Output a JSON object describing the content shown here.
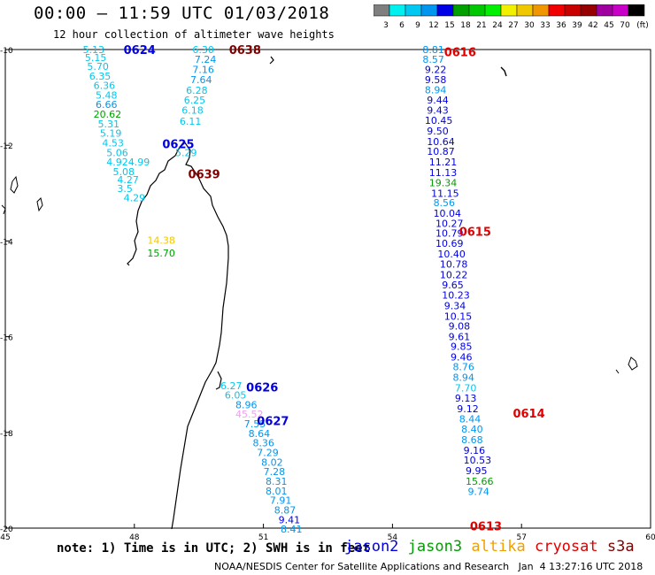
{
  "title": "00:00 – 11:59 UTC 01/03/2018",
  "subtitle": "12 hour collection of altimeter wave heights",
  "colorbar": {
    "ticks": [
      "3",
      "6",
      "9",
      "12",
      "15",
      "18",
      "21",
      "24",
      "27",
      "30",
      "33",
      "36",
      "39",
      "42",
      "45",
      "70",
      "(ft)"
    ],
    "colors": [
      "#7f7f7f",
      "#00f0f0",
      "#00c8f0",
      "#0096f0",
      "#0000e6",
      "#00a000",
      "#00c800",
      "#00f000",
      "#f0f000",
      "#f0c800",
      "#f09600",
      "#f00000",
      "#c80000",
      "#960000",
      "#a000a0",
      "#c800c8",
      "#000000"
    ]
  },
  "axes": {
    "lat_ticks": [
      {
        "lat": -10,
        "label": "-10"
      },
      {
        "lat": -12,
        "label": "-12"
      },
      {
        "lat": -14,
        "label": "-14"
      },
      {
        "lat": -16,
        "label": "-16"
      },
      {
        "lat": -18,
        "label": "-18"
      },
      {
        "lat": -20,
        "label": "-20"
      }
    ],
    "lon_ticks": [
      {
        "lon": 45,
        "label": "45"
      },
      {
        "lon": 48,
        "label": "48"
      },
      {
        "lon": 51,
        "label": "51"
      },
      {
        "lon": 54,
        "label": "54"
      },
      {
        "lon": 57,
        "label": "57"
      },
      {
        "lon": 60,
        "label": "60"
      }
    ]
  },
  "satellite_colors": {
    "jason2": "#0000e0",
    "jason3": "#00a000",
    "altika": "#f0a000",
    "cryosat": "#e00000",
    "s3a": "#800000"
  },
  "track_labels": [
    {
      "text": "0624",
      "lon": 47.75,
      "lat": -10.0,
      "color": "#0000e0"
    },
    {
      "text": "0638",
      "lon": 50.2,
      "lat": -10.0,
      "color": "#800000"
    },
    {
      "text": "0616",
      "lon": 55.2,
      "lat": -10.05,
      "color": "#e00000"
    },
    {
      "text": "0625",
      "lon": 48.65,
      "lat": -11.97,
      "color": "#0000e0"
    },
    {
      "text": "0639",
      "lon": 49.25,
      "lat": -12.6,
      "color": "#800000"
    },
    {
      "text": "0615",
      "lon": 55.55,
      "lat": -13.8,
      "color": "#e00000"
    },
    {
      "text": "0626",
      "lon": 50.6,
      "lat": -17.05,
      "color": "#0000e0"
    },
    {
      "text": "0627",
      "lon": 50.85,
      "lat": -17.75,
      "color": "#0000e0"
    },
    {
      "text": "0614",
      "lon": 56.8,
      "lat": -17.6,
      "color": "#e00000"
    },
    {
      "text": "0613",
      "lon": 55.8,
      "lat": -19.95,
      "color": "#e00000"
    }
  ],
  "observations": [
    {
      "v": "5.13",
      "lon": 46.8,
      "lat": -10.0,
      "c": "#00c8f0"
    },
    {
      "v": "5.15",
      "lon": 46.85,
      "lat": -10.17,
      "c": "#00c8f0"
    },
    {
      "v": "5.70",
      "lon": 46.9,
      "lat": -10.35,
      "c": "#00c8f0"
    },
    {
      "v": "6.35",
      "lon": 46.95,
      "lat": -10.55,
      "c": "#00c8f0"
    },
    {
      "v": "6.36",
      "lon": 47.05,
      "lat": -10.75,
      "c": "#00c8f0"
    },
    {
      "v": "5.48",
      "lon": 47.1,
      "lat": -10.95,
      "c": "#00c8f0"
    },
    {
      "v": "6.66",
      "lon": 47.1,
      "lat": -11.15,
      "c": "#0096f0"
    },
    {
      "v": "20.62",
      "lon": 47.05,
      "lat": -11.35,
      "c": "#00a000"
    },
    {
      "v": "5.31",
      "lon": 47.15,
      "lat": -11.55,
      "c": "#00c8f0"
    },
    {
      "v": "5.19",
      "lon": 47.2,
      "lat": -11.75,
      "c": "#00c8f0"
    },
    {
      "v": "4.53",
      "lon": 47.25,
      "lat": -11.95,
      "c": "#00c8f0"
    },
    {
      "v": "5.06",
      "lon": 47.35,
      "lat": -12.15,
      "c": "#00c8f0"
    },
    {
      "v": "4.924.99",
      "lon": 47.35,
      "lat": -12.35,
      "c": "#00c8f0"
    },
    {
      "v": "5.08",
      "lon": 47.5,
      "lat": -12.55,
      "c": "#00c8f0"
    },
    {
      "v": "4.27",
      "lon": 47.6,
      "lat": -12.72,
      "c": "#00c8f0"
    },
    {
      "v": "3.5",
      "lon": 47.6,
      "lat": -12.9,
      "c": "#00c8f0"
    },
    {
      "v": "4.29",
      "lon": 47.75,
      "lat": -13.1,
      "c": "#00c8f0"
    },
    {
      "v": "6.30",
      "lon": 49.35,
      "lat": -10.0,
      "c": "#00c8f0"
    },
    {
      "v": "7.24",
      "lon": 49.4,
      "lat": -10.2,
      "c": "#0096f0"
    },
    {
      "v": "7.16",
      "lon": 49.35,
      "lat": -10.42,
      "c": "#0096f0"
    },
    {
      "v": "7.64",
      "lon": 49.3,
      "lat": -10.63,
      "c": "#0096f0"
    },
    {
      "v": "6.28",
      "lon": 49.2,
      "lat": -10.85,
      "c": "#00c8f0"
    },
    {
      "v": "6.25",
      "lon": 49.15,
      "lat": -11.05,
      "c": "#00c8f0"
    },
    {
      "v": "6.18",
      "lon": 49.1,
      "lat": -11.27,
      "c": "#00c8f0"
    },
    {
      "v": "6.11",
      "lon": 49.05,
      "lat": -11.5,
      "c": "#00c8f0"
    },
    {
      "v": "5.29",
      "lon": 48.95,
      "lat": -12.15,
      "c": "#00c8f0"
    },
    {
      "v": "14.38",
      "lon": 48.3,
      "lat": -13.98,
      "c": "#f0c800"
    },
    {
      "v": "15.70",
      "lon": 48.3,
      "lat": -14.25,
      "c": "#00a000"
    },
    {
      "v": "8.81",
      "lon": 54.7,
      "lat": -10.0,
      "c": "#0096f0"
    },
    {
      "v": "8.57",
      "lon": 54.7,
      "lat": -10.2,
      "c": "#0096f0"
    },
    {
      "v": "9.22",
      "lon": 54.75,
      "lat": -10.42,
      "c": "#0000e6"
    },
    {
      "v": "9.58",
      "lon": 54.75,
      "lat": -10.63,
      "c": "#0000e6"
    },
    {
      "v": "8.94",
      "lon": 54.75,
      "lat": -10.84,
      "c": "#0096f0"
    },
    {
      "v": "9.44",
      "lon": 54.8,
      "lat": -11.05,
      "c": "#0000e6"
    },
    {
      "v": "9.43",
      "lon": 54.8,
      "lat": -11.27,
      "c": "#0000e6"
    },
    {
      "v": "10.45",
      "lon": 54.75,
      "lat": -11.48,
      "c": "#0000e6"
    },
    {
      "v": "9.50",
      "lon": 54.8,
      "lat": -11.7,
      "c": "#0000e6"
    },
    {
      "v": "10.64",
      "lon": 54.8,
      "lat": -11.92,
      "c": "#0000e6"
    },
    {
      "v": "10.87",
      "lon": 54.8,
      "lat": -12.13,
      "c": "#0000e6"
    },
    {
      "v": "11.21",
      "lon": 54.85,
      "lat": -12.35,
      "c": "#0000e6"
    },
    {
      "v": "11.13",
      "lon": 54.85,
      "lat": -12.57,
      "c": "#0000e6"
    },
    {
      "v": "19.34",
      "lon": 54.85,
      "lat": -12.78,
      "c": "#00a000"
    },
    {
      "v": "11.15",
      "lon": 54.9,
      "lat": -13.0,
      "c": "#0000e6"
    },
    {
      "v": "8.56",
      "lon": 54.95,
      "lat": -13.2,
      "c": "#0096f0"
    },
    {
      "v": "10.04",
      "lon": 54.95,
      "lat": -13.42,
      "c": "#0000e6"
    },
    {
      "v": "10.27",
      "lon": 55.0,
      "lat": -13.63,
      "c": "#0000e6"
    },
    {
      "v": "10.79",
      "lon": 55.0,
      "lat": -13.84,
      "c": "#0000e6"
    },
    {
      "v": "10.69",
      "lon": 55.0,
      "lat": -14.05,
      "c": "#0000e6"
    },
    {
      "v": "10.40",
      "lon": 55.05,
      "lat": -14.27,
      "c": "#0000e6"
    },
    {
      "v": "10.78",
      "lon": 55.1,
      "lat": -14.48,
      "c": "#0000e6"
    },
    {
      "v": "10.22",
      "lon": 55.1,
      "lat": -14.7,
      "c": "#0000e6"
    },
    {
      "v": "9.65",
      "lon": 55.15,
      "lat": -14.92,
      "c": "#0000e6"
    },
    {
      "v": "10.23",
      "lon": 55.15,
      "lat": -15.13,
      "c": "#0000e6"
    },
    {
      "v": "9.34",
      "lon": 55.2,
      "lat": -15.35,
      "c": "#0000e6"
    },
    {
      "v": "10.15",
      "lon": 55.2,
      "lat": -15.57,
      "c": "#0000e6"
    },
    {
      "v": "9.08",
      "lon": 55.3,
      "lat": -15.78,
      "c": "#0000e6"
    },
    {
      "v": "9.61",
      "lon": 55.3,
      "lat": -16.0,
      "c": "#0000e6"
    },
    {
      "v": "9.85",
      "lon": 55.35,
      "lat": -16.2,
      "c": "#0000e6"
    },
    {
      "v": "9.46",
      "lon": 55.35,
      "lat": -16.42,
      "c": "#0000e6"
    },
    {
      "v": "8.76",
      "lon": 55.4,
      "lat": -16.63,
      "c": "#0096f0"
    },
    {
      "v": "8.94",
      "lon": 55.4,
      "lat": -16.85,
      "c": "#0096f0"
    },
    {
      "v": "7.70",
      "lon": 55.45,
      "lat": -17.07,
      "c": "#00c8f0"
    },
    {
      "v": "9.13",
      "lon": 55.45,
      "lat": -17.28,
      "c": "#0000e6"
    },
    {
      "v": "9.12",
      "lon": 55.5,
      "lat": -17.5,
      "c": "#0000e6"
    },
    {
      "v": "8.44",
      "lon": 55.55,
      "lat": -17.72,
      "c": "#0096f0"
    },
    {
      "v": "8.40",
      "lon": 55.6,
      "lat": -17.93,
      "c": "#0096f0"
    },
    {
      "v": "8.68",
      "lon": 55.6,
      "lat": -18.15,
      "c": "#0096f0"
    },
    {
      "v": "9.16",
      "lon": 55.65,
      "lat": -18.37,
      "c": "#0000e6"
    },
    {
      "v": "10.53",
      "lon": 55.65,
      "lat": -18.58,
      "c": "#0000e6"
    },
    {
      "v": "9.95",
      "lon": 55.7,
      "lat": -18.8,
      "c": "#0000e6"
    },
    {
      "v": "15.66",
      "lon": 55.7,
      "lat": -19.02,
      "c": "#00a000"
    },
    {
      "v": "9.74",
      "lon": 55.75,
      "lat": -19.23,
      "c": "#0096f0"
    },
    {
      "v": "6.27",
      "lon": 50.0,
      "lat": -17.02,
      "c": "#00c8f0"
    },
    {
      "v": "6.05",
      "lon": 50.1,
      "lat": -17.22,
      "c": "#00c8f0"
    },
    {
      "v": "8.96",
      "lon": 50.35,
      "lat": -17.42,
      "c": "#0096f0"
    },
    {
      "v": "45.52",
      "lon": 50.35,
      "lat": -17.62,
      "c": "#f0a0f0"
    },
    {
      "v": "7.55",
      "lon": 50.55,
      "lat": -17.82,
      "c": "#0096f0"
    },
    {
      "v": "8.64",
      "lon": 50.65,
      "lat": -18.02,
      "c": "#0096f0"
    },
    {
      "v": "8.36",
      "lon": 50.75,
      "lat": -18.22,
      "c": "#0096f0"
    },
    {
      "v": "7.29",
      "lon": 50.85,
      "lat": -18.42,
      "c": "#0096f0"
    },
    {
      "v": "8.02",
      "lon": 50.95,
      "lat": -18.62,
      "c": "#0096f0"
    },
    {
      "v": "7.28",
      "lon": 51.0,
      "lat": -18.82,
      "c": "#0096f0"
    },
    {
      "v": "8.31",
      "lon": 51.05,
      "lat": -19.02,
      "c": "#0096f0"
    },
    {
      "v": "8.01",
      "lon": 51.05,
      "lat": -19.22,
      "c": "#0096f0"
    },
    {
      "v": "7.91",
      "lon": 51.15,
      "lat": -19.42,
      "c": "#0096f0"
    },
    {
      "v": "8.87",
      "lon": 51.25,
      "lat": -19.62,
      "c": "#0096f0"
    },
    {
      "v": "9.41",
      "lon": 51.35,
      "lat": -19.82,
      "c": "#0000e6"
    },
    {
      "v": "8.41",
      "lon": 51.4,
      "lat": -20.02,
      "c": "#0096f0"
    }
  ],
  "footer_note": "note: 1) Time is in UTC; 2) SWH is in feet",
  "legend": [
    {
      "name": "jason2",
      "color": "#0000e0"
    },
    {
      "name": "jason3",
      "color": "#00a000"
    },
    {
      "name": "altika",
      "color": "#f0a000"
    },
    {
      "name": "cryosat",
      "color": "#e00000"
    },
    {
      "name": "s3a",
      "color": "#800000"
    }
  ],
  "credit": "NOAA/NESDIS Center for Satellite Applications and Research   Jan  4 13:27:16 UTC 2018"
}
